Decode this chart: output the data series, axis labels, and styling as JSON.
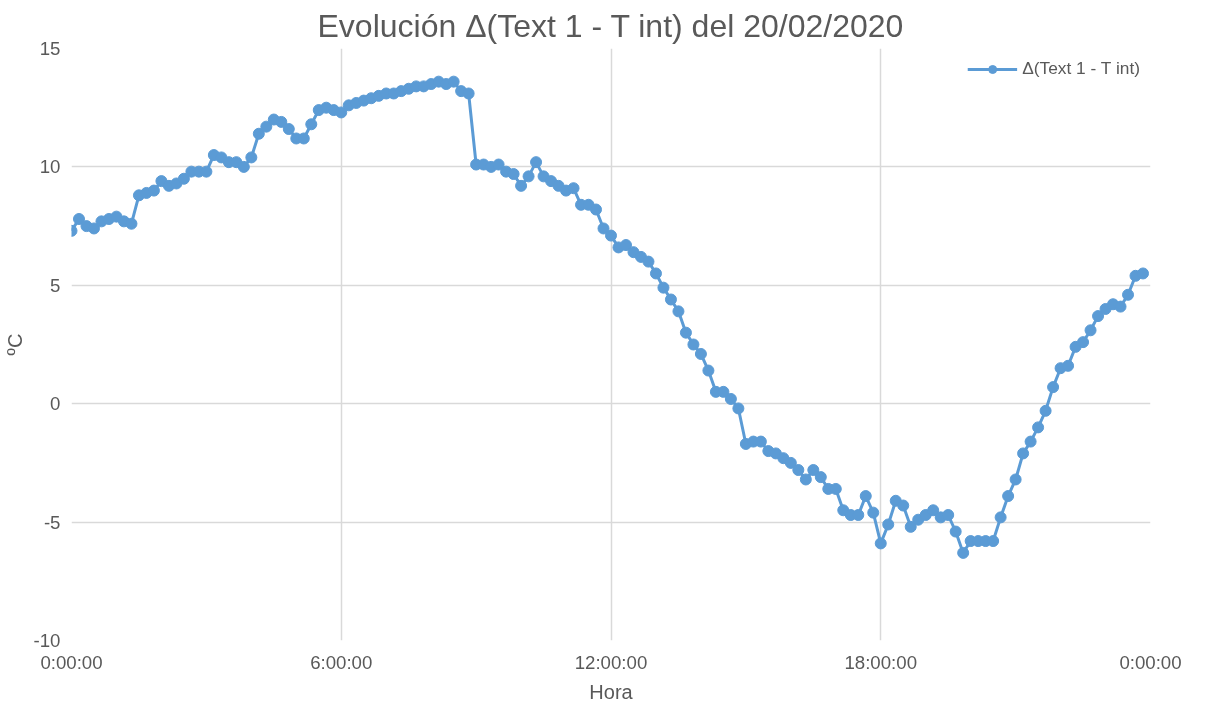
{
  "chart_data": {
    "type": "line",
    "title": "Evolución Δ(Text 1 - T int) del 20/02/2020",
    "xlabel": "Hora",
    "ylabel": "ºC",
    "x": [
      "2020-02-20T00:00",
      "2020-02-20T00:10",
      "2020-02-20T00:20",
      "2020-02-20T00:30",
      "2020-02-20T00:40",
      "2020-02-20T00:50",
      "2020-02-20T01:00",
      "2020-02-20T01:10",
      "2020-02-20T01:20",
      "2020-02-20T01:30",
      "2020-02-20T01:40",
      "2020-02-20T01:50",
      "2020-02-20T02:00",
      "2020-02-20T02:10",
      "2020-02-20T02:20",
      "2020-02-20T02:30",
      "2020-02-20T02:40",
      "2020-02-20T02:50",
      "2020-02-20T03:00",
      "2020-02-20T03:10",
      "2020-02-20T03:20",
      "2020-02-20T03:30",
      "2020-02-20T03:40",
      "2020-02-20T03:50",
      "2020-02-20T04:00",
      "2020-02-20T04:10",
      "2020-02-20T04:20",
      "2020-02-20T04:30",
      "2020-02-20T04:40",
      "2020-02-20T04:50",
      "2020-02-20T05:00",
      "2020-02-20T05:10",
      "2020-02-20T05:20",
      "2020-02-20T05:30",
      "2020-02-20T05:40",
      "2020-02-20T05:50",
      "2020-02-20T06:00",
      "2020-02-20T06:10",
      "2020-02-20T06:20",
      "2020-02-20T06:30",
      "2020-02-20T06:40",
      "2020-02-20T06:50",
      "2020-02-20T07:00",
      "2020-02-20T07:10",
      "2020-02-20T07:20",
      "2020-02-20T07:30",
      "2020-02-20T07:40",
      "2020-02-20T07:50",
      "2020-02-20T08:00",
      "2020-02-20T08:10",
      "2020-02-20T08:20",
      "2020-02-20T08:30",
      "2020-02-20T08:40",
      "2020-02-20T08:50",
      "2020-02-20T09:00",
      "2020-02-20T09:10",
      "2020-02-20T09:20",
      "2020-02-20T09:30",
      "2020-02-20T09:40",
      "2020-02-20T09:50",
      "2020-02-20T10:00",
      "2020-02-20T10:10",
      "2020-02-20T10:20",
      "2020-02-20T10:30",
      "2020-02-20T10:40",
      "2020-02-20T10:50",
      "2020-02-20T11:00",
      "2020-02-20T11:10",
      "2020-02-20T11:20",
      "2020-02-20T11:30",
      "2020-02-20T11:40",
      "2020-02-20T11:50",
      "2020-02-20T12:00",
      "2020-02-20T12:10",
      "2020-02-20T12:20",
      "2020-02-20T12:30",
      "2020-02-20T12:40",
      "2020-02-20T12:50",
      "2020-02-20T13:00",
      "2020-02-20T13:10",
      "2020-02-20T13:20",
      "2020-02-20T13:30",
      "2020-02-20T13:40",
      "2020-02-20T13:50",
      "2020-02-20T14:00",
      "2020-02-20T14:10",
      "2020-02-20T14:20",
      "2020-02-20T14:30",
      "2020-02-20T14:40",
      "2020-02-20T14:50",
      "2020-02-20T15:00",
      "2020-02-20T15:10",
      "2020-02-20T15:20",
      "2020-02-20T15:30",
      "2020-02-20T15:40",
      "2020-02-20T15:50",
      "2020-02-20T16:00",
      "2020-02-20T16:10",
      "2020-02-20T16:20",
      "2020-02-20T16:30",
      "2020-02-20T16:40",
      "2020-02-20T16:50",
      "2020-02-20T17:00",
      "2020-02-20T17:10",
      "2020-02-20T17:20",
      "2020-02-20T17:30",
      "2020-02-20T17:40",
      "2020-02-20T17:50",
      "2020-02-20T18:00",
      "2020-02-20T18:10",
      "2020-02-20T18:20",
      "2020-02-20T18:30",
      "2020-02-20T18:40",
      "2020-02-20T18:50",
      "2020-02-20T19:00",
      "2020-02-20T19:10",
      "2020-02-20T19:20",
      "2020-02-20T19:30",
      "2020-02-20T19:40",
      "2020-02-20T19:50",
      "2020-02-20T20:00",
      "2020-02-20T20:10",
      "2020-02-20T20:20",
      "2020-02-20T20:30",
      "2020-02-20T20:40",
      "2020-02-20T20:50",
      "2020-02-20T21:00",
      "2020-02-20T21:10",
      "2020-02-20T21:20",
      "2020-02-20T21:30",
      "2020-02-20T21:40",
      "2020-02-20T21:50",
      "2020-02-20T22:00",
      "2020-02-20T22:10",
      "2020-02-20T22:20",
      "2020-02-20T22:30",
      "2020-02-20T22:40",
      "2020-02-20T22:50",
      "2020-02-20T23:00",
      "2020-02-20T23:10",
      "2020-02-20T23:20",
      "2020-02-20T23:30",
      "2020-02-20T23:40",
      "2020-02-20T23:50"
    ],
    "series": [
      {
        "name": "Δ(Text 1 - T int)",
        "color": "#5b9bd5",
        "values": [
          7.3,
          7.8,
          7.5,
          7.4,
          7.7,
          7.8,
          7.9,
          7.7,
          7.6,
          8.8,
          8.9,
          9.0,
          9.4,
          9.2,
          9.3,
          9.5,
          9.8,
          9.8,
          9.8,
          10.5,
          10.4,
          10.2,
          10.2,
          10.0,
          10.4,
          11.4,
          11.7,
          12.0,
          11.9,
          11.6,
          11.2,
          11.2,
          11.8,
          12.4,
          12.5,
          12.4,
          12.3,
          12.6,
          12.7,
          12.8,
          12.9,
          13.0,
          13.1,
          13.1,
          13.2,
          13.3,
          13.4,
          13.4,
          13.5,
          13.6,
          13.5,
          13.6,
          13.2,
          13.1,
          10.1,
          10.1,
          10.0,
          10.1,
          9.8,
          9.7,
          9.2,
          9.6,
          10.2,
          9.6,
          9.4,
          9.2,
          9.0,
          9.1,
          8.4,
          8.4,
          8.2,
          7.4,
          7.1,
          6.6,
          6.7,
          6.4,
          6.2,
          6.0,
          5.5,
          4.9,
          4.4,
          3.9,
          3.0,
          2.5,
          2.1,
          1.4,
          0.5,
          0.5,
          0.2,
          -0.2,
          -1.7,
          -1.6,
          -1.6,
          -2.0,
          -2.1,
          -2.3,
          -2.5,
          -2.8,
          -3.2,
          -2.8,
          -3.1,
          -3.6,
          -3.6,
          -4.5,
          -4.7,
          -4.7,
          -3.9,
          -4.6,
          -5.9,
          -5.1,
          -4.1,
          -4.3,
          -5.2,
          -4.9,
          -4.7,
          -4.5,
          -4.8,
          -4.7,
          -5.4,
          -6.3,
          -5.8,
          -5.8,
          -5.8,
          -5.8,
          -4.8,
          -3.9,
          -3.2,
          -2.1,
          -1.6,
          -1.0,
          -0.3,
          0.7,
          1.5,
          1.6,
          2.4,
          2.6,
          3.1,
          3.7,
          4.0,
          4.2,
          4.1,
          4.6,
          5.4,
          5.5
        ]
      }
    ],
    "xlim": [
      "2020-02-20T00:00",
      "2020-02-21T00:00"
    ],
    "xticks": [
      {
        "value": "2020-02-20T00:00",
        "label": "0:00:00"
      },
      {
        "value": "2020-02-20T06:00",
        "label": "6:00:00"
      },
      {
        "value": "2020-02-20T12:00",
        "label": "12:00:00"
      },
      {
        "value": "2020-02-20T18:00",
        "label": "18:00:00"
      },
      {
        "value": "2020-02-21T00:00",
        "label": "0:00:00"
      }
    ],
    "ylim": [
      -10,
      15
    ],
    "yticks": [
      -10,
      -5,
      0,
      5,
      10,
      15
    ],
    "grid": true,
    "legend": "top right",
    "marker": "circle",
    "line_style": "solid"
  }
}
